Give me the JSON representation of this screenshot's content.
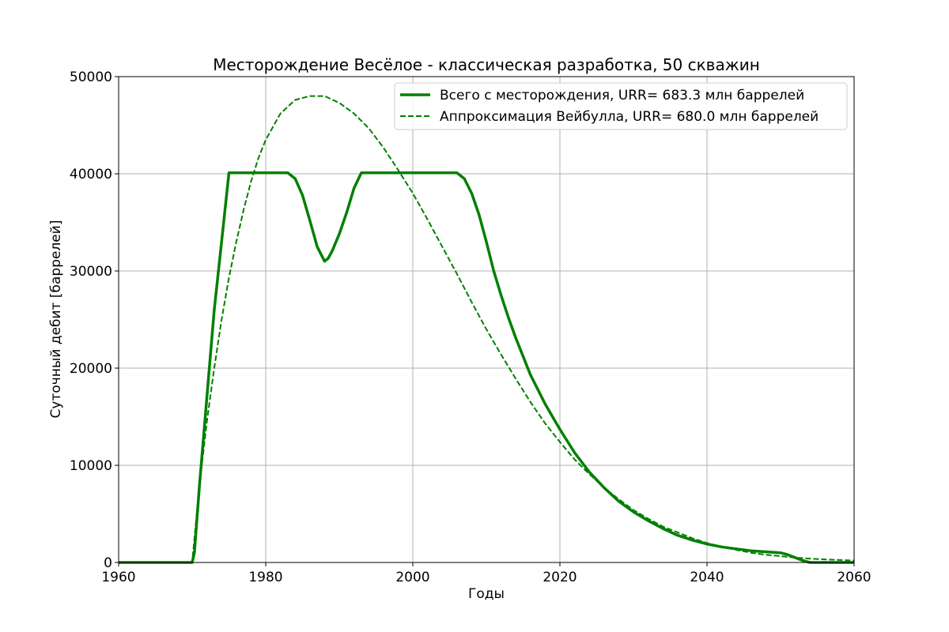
{
  "chart_data": {
    "type": "line",
    "title": "Месторождение Весёлое - классическая разработка, 50 скважин",
    "xlabel": "Годы",
    "ylabel": "Суточный дебит [баррелей]",
    "xlim": [
      1960,
      2060
    ],
    "ylim": [
      0,
      50000
    ],
    "xticks": [
      1960,
      1980,
      2000,
      2020,
      2040,
      2060
    ],
    "yticks": [
      0,
      10000,
      20000,
      30000,
      40000,
      50000
    ],
    "grid": true,
    "legend_position": "top-right",
    "line_color": "#008000",
    "series": [
      {
        "name": "Всего с месторождения, URR=  683.3 млн баррелей",
        "style": "solid",
        "x": [
          1960,
          1970,
          1970.3,
          1971,
          1972,
          1973,
          1974,
          1975,
          1976,
          1983,
          1984,
          1985,
          1986,
          1987,
          1988,
          1988.5,
          1989,
          1990,
          1991,
          1992,
          1993,
          1994,
          2006,
          2007,
          2008,
          2009,
          2010,
          2011,
          2012,
          2013,
          2014,
          2015,
          2016,
          2018,
          2020,
          2022,
          2024,
          2026,
          2028,
          2030,
          2032,
          2034,
          2036,
          2038,
          2040,
          2042,
          2044,
          2046,
          2048,
          2050,
          2051,
          2052,
          2053,
          2054,
          2055,
          2060
        ],
        "y": [
          0,
          0,
          1000,
          8000,
          17000,
          26000,
          33000,
          40100,
          40100,
          40100,
          39500,
          37800,
          35200,
          32500,
          31000,
          31300,
          32000,
          33800,
          36000,
          38500,
          40100,
          40100,
          40100,
          39500,
          38000,
          35800,
          33000,
          30000,
          27500,
          25200,
          23100,
          21200,
          19300,
          16300,
          13700,
          11300,
          9300,
          7700,
          6300,
          5200,
          4300,
          3500,
          2800,
          2300,
          1900,
          1600,
          1400,
          1200,
          1100,
          1000,
          800,
          500,
          200,
          0,
          0,
          0
        ]
      },
      {
        "name": "Аппроксимация Вейбулла, URR=  680.0 млн баррелей",
        "style": "dashed",
        "x": [
          1960,
          1970,
          1970.5,
          1971,
          1972,
          1973,
          1974,
          1975,
          1976,
          1977,
          1978,
          1979,
          1980,
          1982,
          1984,
          1986,
          1988,
          1990,
          1992,
          1994,
          1996,
          1998,
          2000,
          2002,
          2004,
          2006,
          2008,
          2010,
          2012,
          2014,
          2016,
          2018,
          2020,
          2022,
          2024,
          2026,
          2028,
          2030,
          2032,
          2034,
          2036,
          2038,
          2040,
          2042,
          2044,
          2046,
          2048,
          2050,
          2052,
          2054,
          2056,
          2058,
          2060
        ],
        "y": [
          0,
          0,
          4000,
          8000,
          14500,
          20000,
          25000,
          29300,
          33000,
          36300,
          39200,
          41600,
          43500,
          46200,
          47600,
          48000,
          48000,
          47300,
          46200,
          44700,
          42700,
          40400,
          38000,
          35300,
          32500,
          29700,
          26800,
          24000,
          21400,
          18900,
          16500,
          14300,
          12400,
          10600,
          9100,
          7700,
          6500,
          5400,
          4500,
          3700,
          3100,
          2500,
          2000,
          1600,
          1300,
          1000,
          800,
          650,
          500,
          400,
          320,
          250,
          200
        ]
      }
    ]
  }
}
